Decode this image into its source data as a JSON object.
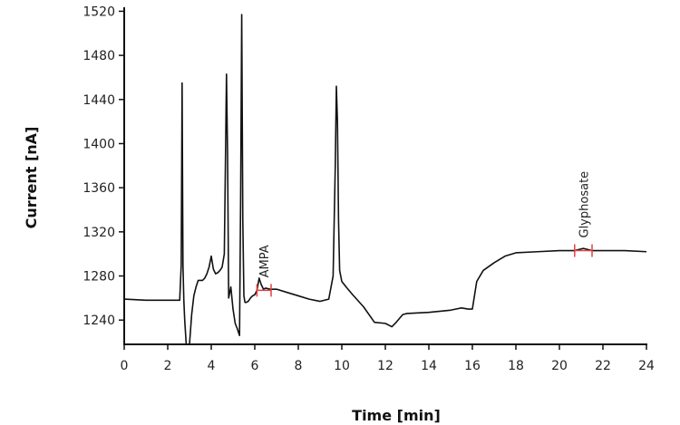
{
  "chart_data": {
    "type": "line",
    "title": "",
    "xlabel": "Time [min]",
    "ylabel": "Current [nA]",
    "xlim": [
      0,
      24
    ],
    "ylim": [
      1218,
      1522
    ],
    "xticks": [
      0,
      2,
      4,
      6,
      8,
      10,
      12,
      14,
      16,
      18,
      20,
      22,
      24
    ],
    "yticks": [
      1240,
      1280,
      1320,
      1360,
      1400,
      1440,
      1480,
      1520
    ],
    "grid": false,
    "line_color": "#111111",
    "marker_color": "#e04040",
    "series": [
      {
        "x": [
          0,
          1,
          2,
          2.55,
          2.62,
          2.66,
          2.7,
          2.74,
          2.78,
          2.85,
          2.9,
          3.0,
          3.1,
          3.2,
          3.3,
          3.4,
          3.5,
          3.6,
          3.7,
          3.8,
          3.9,
          4.0,
          4.1,
          4.2,
          4.3,
          4.4,
          4.5,
          4.6,
          4.65,
          4.7,
          4.75,
          4.8,
          4.85,
          4.9,
          5.0,
          5.1,
          5.2,
          5.25,
          5.3,
          5.35,
          5.4,
          5.45,
          5.5,
          5.55,
          5.6,
          5.7,
          5.8,
          5.9,
          6.0,
          6.1,
          6.2,
          6.3,
          6.4,
          6.5,
          6.7,
          7.0,
          7.5,
          8.0,
          8.5,
          9.0,
          9.4,
          9.6,
          9.7,
          9.75,
          9.8,
          9.85,
          9.9,
          10.0,
          10.2,
          10.5,
          11.0,
          11.5,
          12.0,
          12.3,
          12.5,
          12.8,
          13.0,
          14.0,
          15.0,
          15.5,
          15.8,
          16.0,
          16.2,
          16.5,
          17.0,
          17.5,
          18.0,
          19.0,
          20.0,
          20.7,
          21.1,
          21.5,
          22.0,
          23.0,
          24.0
        ],
        "y": [
          1259,
          1258,
          1258,
          1258,
          1290,
          1455,
          1290,
          1258,
          1240,
          1218,
          1218,
          1218,
          1245,
          1262,
          1270,
          1276,
          1276,
          1276,
          1278,
          1282,
          1288,
          1298,
          1286,
          1282,
          1283,
          1285,
          1288,
          1300,
          1380,
          1463,
          1390,
          1260,
          1265,
          1270,
          1250,
          1237,
          1232,
          1229,
          1226,
          1350,
          1517,
          1330,
          1262,
          1256,
          1256,
          1257,
          1260,
          1262,
          1263,
          1267,
          1278,
          1272,
          1268,
          1269,
          1268,
          1268,
          1265,
          1262,
          1259,
          1257,
          1259,
          1280,
          1380,
          1452,
          1420,
          1330,
          1285,
          1275,
          1270,
          1263,
          1252,
          1238,
          1237,
          1234,
          1238,
          1245,
          1246,
          1247,
          1249,
          1251,
          1250,
          1250,
          1275,
          1285,
          1292,
          1298,
          1301,
          1302,
          1303,
          1303,
          1305,
          1303,
          1303,
          1303,
          1302
        ]
      }
    ],
    "annotations": [
      {
        "text": "AMPA",
        "x_range": [
          6.1,
          6.75
        ],
        "y": 1267
      },
      {
        "text": "Glyphosate",
        "x_range": [
          20.7,
          21.5
        ],
        "y": 1303
      }
    ]
  }
}
